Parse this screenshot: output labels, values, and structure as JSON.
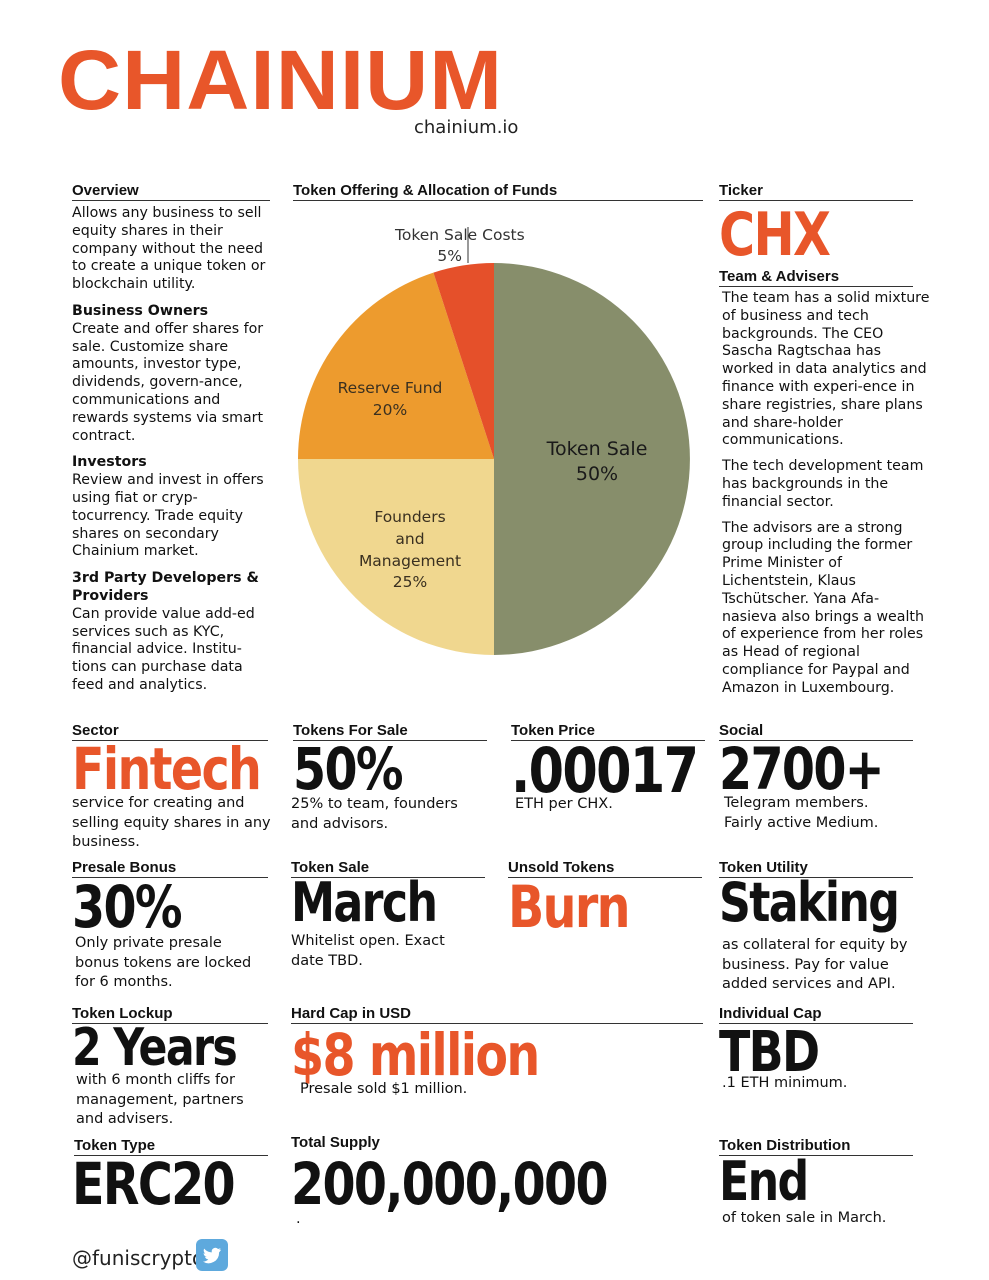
{
  "brand": {
    "logo": "CHAINIUM",
    "site": "chainium.io"
  },
  "colors": {
    "orange": "#e8562a",
    "green": "#878e6b",
    "amber": "#ed9b2e",
    "cream": "#f0d78f"
  },
  "overview": {
    "header": "Overview",
    "text": "Allows any business to sell equity shares in their company without the need to create a unique token or blockchain utility.",
    "owners_title": "Business Owners",
    "owners_text": "Create and offer shares for sale.  Customize share amounts, investor type, dividends, govern-ance, communications and rewards systems via smart contract.",
    "investors_title": "Investors",
    "investors_text": "Review and invest in offers using fiat or cryp-tocurrency.  Trade equity shares on secondary Chainium market.",
    "dev_title": "3rd Party Developers & Providers",
    "dev_text": "Can provide value add-ed services such as KYC, financial advice.  Institu-tions can purchase data feed and analytics."
  },
  "allocation": {
    "header": "Token Offering & Allocation of Funds"
  },
  "chart_data": {
    "type": "pie",
    "slices": [
      {
        "label": "Token Sale",
        "value": 50,
        "display": "50%",
        "color": "#878e6b"
      },
      {
        "label": "Founders and Management",
        "value": 25,
        "display": "25%",
        "color": "#f0d78f"
      },
      {
        "label": "Reserve Fund",
        "value": 20,
        "display": "20%",
        "color": "#ed9b2e"
      },
      {
        "label": "Token Sale Costs",
        "value": 5,
        "display": "5%",
        "color": "#e5502a"
      }
    ]
  },
  "ticker": {
    "header": "Ticker",
    "value": "CHX"
  },
  "team": {
    "header": "Team & Advisers",
    "p1": "The team has a solid mixture of business and tech backgrounds.  The CEO Sascha Ragtschaa has worked in data analytics and finance with experi-ence in share registries, share plans and share-holder communications.",
    "p2": "The tech development team has backgrounds in the financial sector.",
    "p3": "The advisors are a strong group  including the former Prime Minister of Lichentstein, Klaus Tschütscher.  Yana Afa-nasieva also brings a wealth of experience from her roles as Head of regional compliance for Paypal and Amazon in Luxembourg."
  },
  "stats": {
    "sector": {
      "header": "Sector",
      "value": "Fintech",
      "text": "service for creating and selling equity shares in any business."
    },
    "tokens_for_sale": {
      "header": "Tokens For Sale",
      "value": "50%",
      "text": "25% to team, founders and advisors."
    },
    "token_price": {
      "header": "Token Price",
      "value": ".00017",
      "text": "ETH per CHX."
    },
    "social": {
      "header": "Social",
      "value": "2700+",
      "text": "Telegram members. Fairly active Medium."
    },
    "presale_bonus": {
      "header": "Presale Bonus",
      "value": "30%",
      "text": "Only private presale bonus tokens are locked for 6 months."
    },
    "token_sale": {
      "header": "Token Sale",
      "value": "March",
      "text": "Whitelist open.  Exact date TBD."
    },
    "unsold": {
      "header": "Unsold Tokens",
      "value": "Burn"
    },
    "utility": {
      "header": "Token Utility",
      "value": "Staking",
      "text": "as collateral for equity by business.  Pay for value added services and API."
    },
    "lockup": {
      "header": "Token Lockup",
      "value": "2 Years",
      "text": "with 6 month cliffs for management, partners and advisers."
    },
    "hardcap": {
      "header": "Hard Cap in USD",
      "value": "$8 million",
      "text": "Presale sold $1 million."
    },
    "individual_cap": {
      "header": "Individual Cap",
      "value": "TBD",
      "text": ".1 ETH minimum."
    },
    "token_type": {
      "header": "Token Type",
      "value": "ERC20"
    },
    "total_supply": {
      "header": "Total Supply",
      "value": "200,000,000",
      "text": "."
    },
    "distribution": {
      "header": "Token Distribution",
      "value": "End",
      "text": "of token sale in March."
    }
  },
  "footer": {
    "handle": "@funiscrypto",
    "icon": "twitter-bird-icon"
  }
}
